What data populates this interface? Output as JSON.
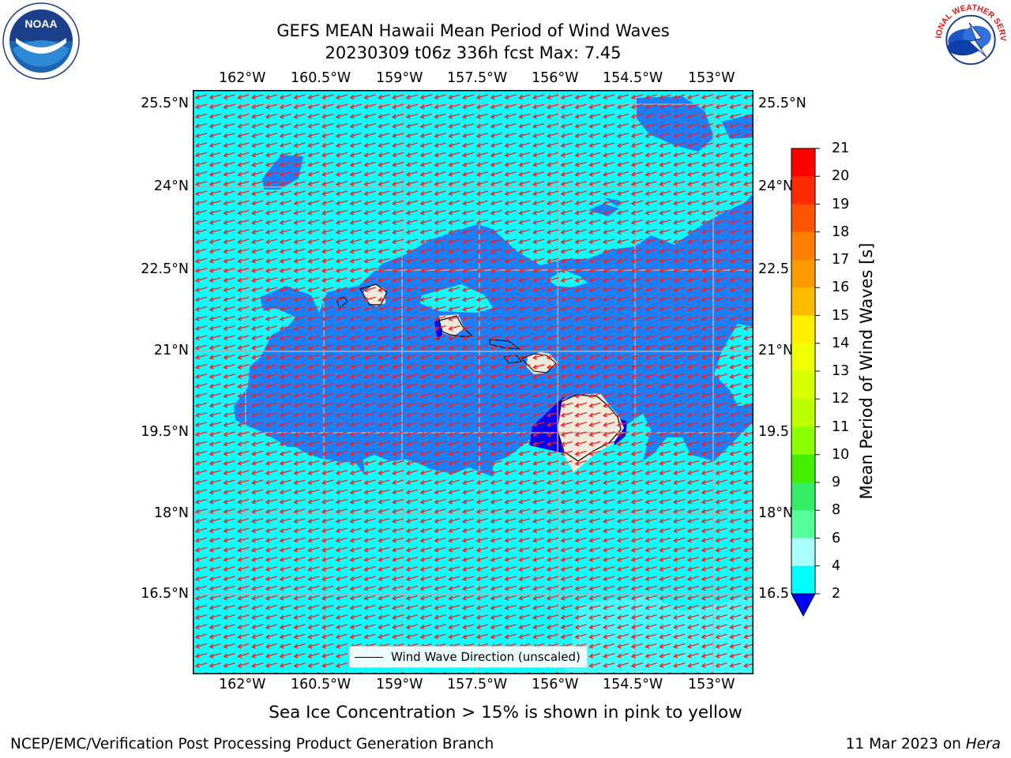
{
  "title_line1": "GEFS MEAN Hawaii Mean Period of Wind Waves",
  "title_line2": "20230309 t06z 336h fcst   Max: 7.45",
  "lon_ticks": [
    "162°W",
    "160.5°W",
    "159°W",
    "157.5°W",
    "156°W",
    "154.5°W",
    "153°W"
  ],
  "lat_ticks_left": [
    "25.5°N",
    "24°N",
    "22.5°N",
    "21°N",
    "19.5°N",
    "18°N",
    "16.5°N"
  ],
  "lat_ticks_right": [
    "25.5°N",
    "24°N",
    "22.5",
    "21°N",
    "19.5",
    "18°N",
    "16.5"
  ],
  "legend_label": "Wind Wave Direction (unscaled)",
  "colorbar": {
    "label": "Mean Period of Wind Waves [s]",
    "ticks": [
      "21",
      "20",
      "19",
      "18",
      "17",
      "16",
      "15",
      "14",
      "13",
      "12",
      "11",
      "10",
      "9",
      "8",
      "6",
      "4",
      "2"
    ],
    "colors": [
      "#ff0000",
      "#ff2a00",
      "#ff5500",
      "#ff7f00",
      "#ff9900",
      "#ffbb00",
      "#ffee00",
      "#eeff00",
      "#d6ff00",
      "#bbff00",
      "#8cff00",
      "#44ee00",
      "#00dd00",
      "#33ee66",
      "#55ff99",
      "#aaffff",
      "#55ffff",
      "#00ffff",
      "#0080ff",
      "#0000ff"
    ],
    "water_color": "#0affff",
    "mid_color": "#1a80ff"
  },
  "note": "Sea Ice Concentration > 15% is shown in pink to yellow",
  "footer_left": "NCEP/EMC/Verification Post Processing Product Generation Branch",
  "footer_date": "11 Mar 2023 on ",
  "footer_host": "Hera",
  "logos": {
    "left": "NOAA",
    "right": "NATIONAL WEATHER SERVICE"
  }
}
